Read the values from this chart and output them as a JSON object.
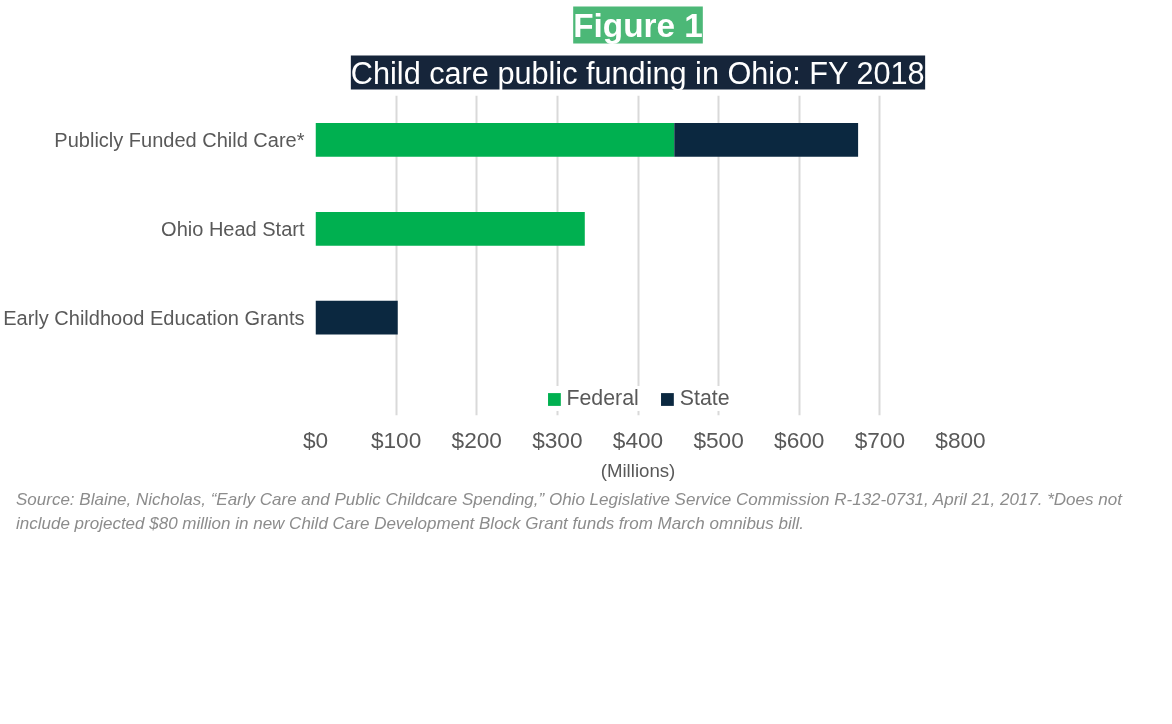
{
  "chart_data": {
    "type": "bar",
    "orientation": "horizontal",
    "stacked": true,
    "title": "Figure 1",
    "subtitle": "Child care public funding in Ohio: FY 2018",
    "xlabel": "(Millions)",
    "categories": [
      "Publicly Funded Child Care*",
      "Ohio Head Start",
      "Early Childhood Education Grants"
    ],
    "series": [
      {
        "name": "Federal",
        "color": "#00b050",
        "values": [
          445,
          334,
          null
        ]
      },
      {
        "name": "State",
        "color": "#0b2840",
        "values": [
          228,
          null,
          102
        ]
      }
    ],
    "xlim": [
      0,
      800
    ],
    "xticks": [
      {
        "value": 0,
        "label": "$0"
      },
      {
        "value": 100,
        "label": "$100"
      },
      {
        "value": 200,
        "label": "$200"
      },
      {
        "value": 300,
        "label": "$300"
      },
      {
        "value": 400,
        "label": "$400"
      },
      {
        "value": 500,
        "label": "$500"
      },
      {
        "value": 600,
        "label": "$600"
      },
      {
        "value": 700,
        "label": "$700"
      },
      {
        "value": 800,
        "label": "$800"
      }
    ],
    "grid": "x",
    "legend": "bottom",
    "annotations": [
      "Source: Blaine, Nicholas, “Early Care and Public Childcare Spending,” Ohio Legislative Service Commission R-132-0731, April 21, 2017. *Does not include projected $80 million in new Child Care Development Block Grant funds from March omnibus bill."
    ]
  }
}
